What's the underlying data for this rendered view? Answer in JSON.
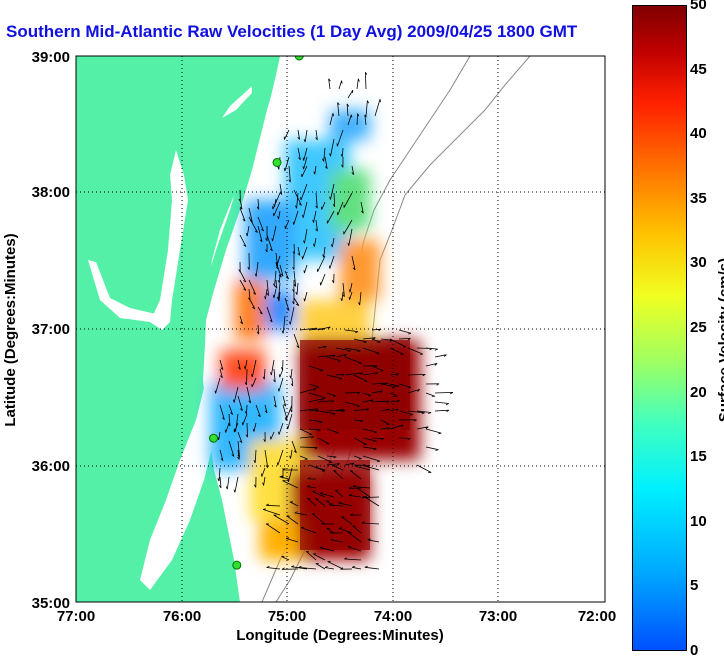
{
  "title": "Southern Mid-Atlantic Raw Velocities (1 Day Avg) 2009/04/25 1800 GMT",
  "map": {
    "x_axis": {
      "label": "Longitude (Degrees:Minutes)",
      "ticks": [
        "77:00",
        "76:00",
        "75:00",
        "74:00",
        "73:00",
        "72:00"
      ],
      "range": [
        -77,
        -72
      ]
    },
    "y_axis": {
      "label": "Latitude (Degrees:Minutes)",
      "ticks": [
        "35:00",
        "36:00",
        "37:00",
        "38:00",
        "39:00"
      ],
      "range": [
        35,
        39
      ]
    },
    "grid": "dotted",
    "land_color": "#55f0a8",
    "water_color": "#ffffff"
  },
  "colorbar": {
    "label": "Surface Velocity (cm/s)",
    "ticks": [
      "0",
      "5",
      "10",
      "15",
      "20",
      "25",
      "30",
      "35",
      "40",
      "45",
      "50"
    ],
    "range": [
      0,
      50
    ],
    "colormap": "jet"
  },
  "stations": [
    {
      "lon": -74.89,
      "lat": 39.0
    },
    {
      "lon": -75.1,
      "lat": 38.22
    },
    {
      "lon": -75.7,
      "lat": 36.2
    },
    {
      "lon": -75.48,
      "lat": 35.27
    }
  ]
}
